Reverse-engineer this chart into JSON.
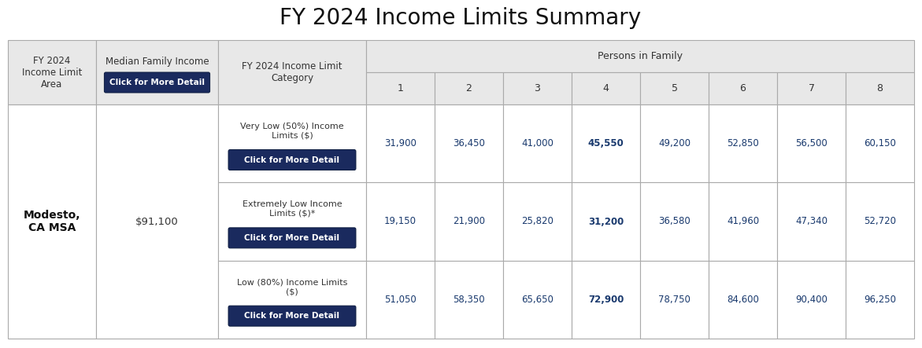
{
  "title": "FY 2024 Income Limits Summary",
  "title_fontsize": 20,
  "header_bg": "#e8e8e8",
  "data_bg": "#ffffff",
  "border_color": "#aaaaaa",
  "button_color": "#1a2a5e",
  "button_text_color": "#ffffff",
  "header_text_color": "#333333",
  "data_text_color": "#1a3a6e",
  "col1_header": "FY 2024\nIncome Limit\nArea",
  "col2_header": "Median Family Income",
  "col2_button_text": "Click for More Detail",
  "col3_header": "FY 2024 Income Limit\nCategory",
  "persons_header": "Persons in Family",
  "person_cols": [
    "1",
    "2",
    "3",
    "4",
    "5",
    "6",
    "7",
    "8"
  ],
  "area_label": "Modesto,\nCA MSA",
  "median_income": "$91,100",
  "categories": [
    {
      "label": "Very Low (50%) Income\nLimits ($)",
      "button_text": "Click for More Detail",
      "values": [
        "31,900",
        "36,450",
        "41,000",
        "45,550",
        "49,200",
        "52,850",
        "56,500",
        "60,150"
      ],
      "bold_col": 3
    },
    {
      "label": "Extremely Low Income\nLimits ($)*",
      "button_text": "Click for More Detail",
      "values": [
        "19,150",
        "21,900",
        "25,820",
        "31,200",
        "36,580",
        "41,960",
        "47,340",
        "52,720"
      ],
      "bold_col": 3
    },
    {
      "label": "Low (80%) Income Limits\n($)",
      "button_text": "Click for More Detail",
      "values": [
        "51,050",
        "58,350",
        "65,650",
        "72,900",
        "78,750",
        "84,600",
        "90,400",
        "96,250"
      ],
      "bold_col": 3
    }
  ]
}
